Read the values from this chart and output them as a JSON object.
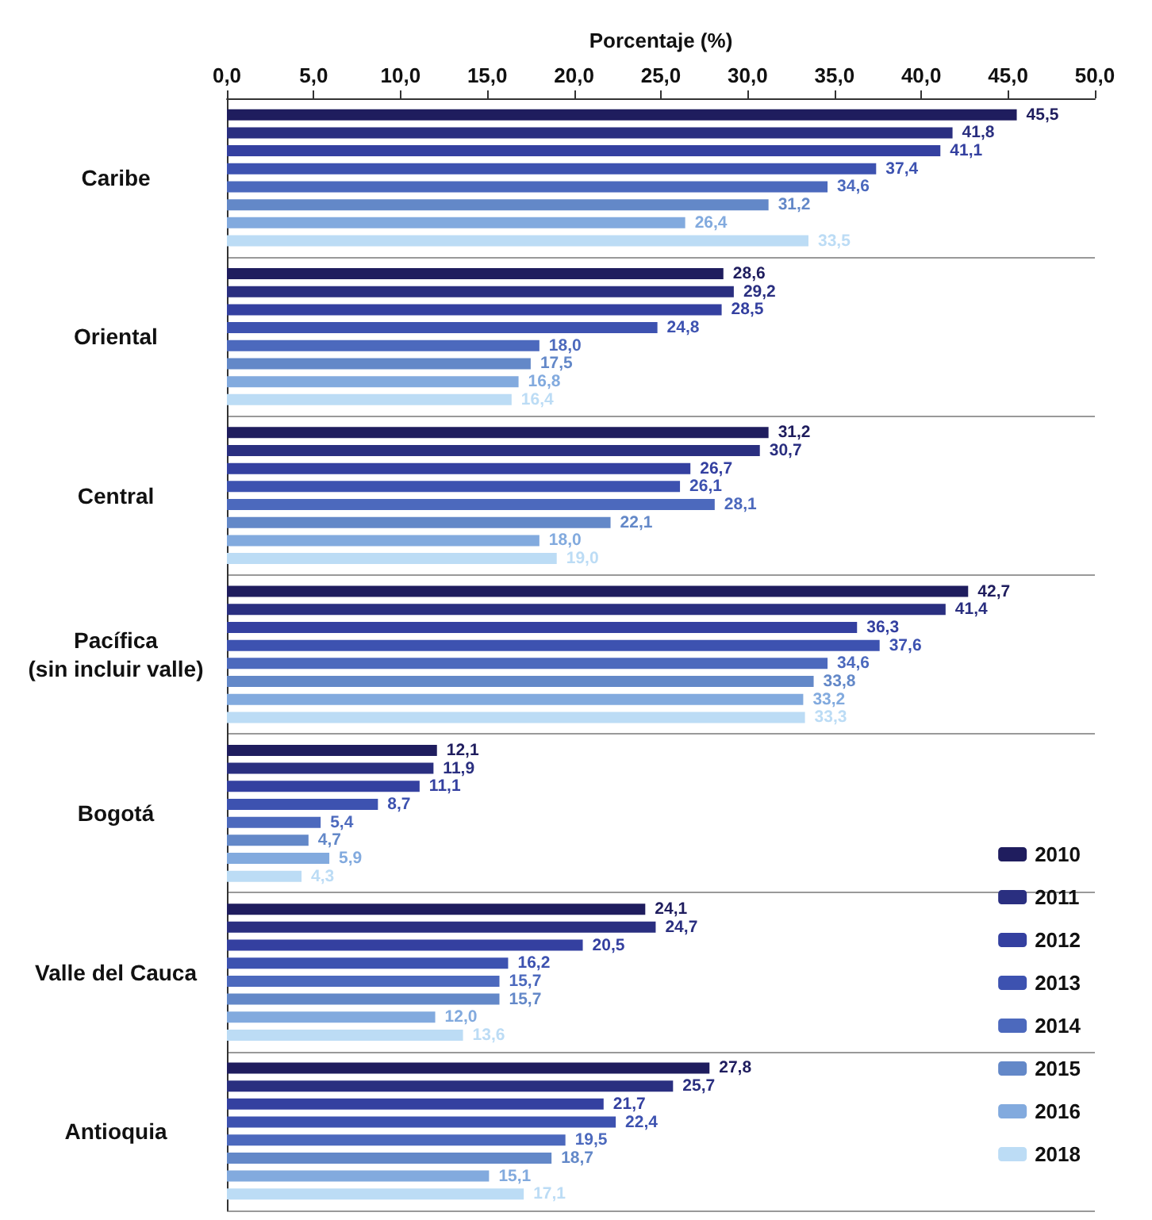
{
  "chart_data": {
    "type": "bar",
    "orientation": "horizontal",
    "xlabel": "Porcentaje (%)",
    "categories": [
      "Caribe",
      "Oriental",
      "Central",
      "Pacífica (sin incluir valle)",
      "Bogotá",
      "Valle del Cauca",
      "Antioquia"
    ],
    "series": [
      {
        "name": "2010",
        "color": "#1f1d5e",
        "values": [
          45.5,
          28.6,
          31.2,
          42.7,
          12.1,
          24.1,
          27.8
        ],
        "value_labels": [
          "45,5",
          "28,6",
          "31,2",
          "42,7",
          "12,1",
          "24,1",
          "27,8"
        ]
      },
      {
        "name": "2011",
        "color": "#2a2f80",
        "values": [
          41.8,
          29.2,
          30.7,
          41.4,
          11.9,
          24.7,
          25.7
        ],
        "value_labels": [
          "41,8",
          "29,2",
          "30,7",
          "41,4",
          "11,9",
          "24,7",
          "25,7"
        ]
      },
      {
        "name": "2012",
        "color": "#3440a0",
        "values": [
          41.1,
          28.5,
          26.7,
          36.3,
          11.1,
          20.5,
          21.7
        ],
        "value_labels": [
          "41,1",
          "28,5",
          "26,7",
          "36,3",
          "11,1",
          "20,5",
          "21,7"
        ]
      },
      {
        "name": "2013",
        "color": "#3d52b0",
        "values": [
          37.4,
          24.8,
          26.1,
          37.6,
          8.7,
          16.2,
          22.4
        ],
        "value_labels": [
          "37,4",
          "24,8",
          "26,1",
          "37,6",
          "8,7",
          "16,2",
          "22,4"
        ]
      },
      {
        "name": "2014",
        "color": "#4c69bd",
        "values": [
          34.6,
          18.0,
          28.1,
          34.6,
          5.4,
          15.7,
          19.5
        ],
        "value_labels": [
          "34,6",
          "18,0",
          "28,1",
          "34,6",
          "5,4",
          "15,7",
          "19,5"
        ]
      },
      {
        "name": "2015",
        "color": "#6388c8",
        "values": [
          31.2,
          17.5,
          22.1,
          33.8,
          4.7,
          15.7,
          18.7
        ],
        "value_labels": [
          "31,2",
          "17,5",
          "22,1",
          "33,8",
          "4,7",
          "15,7",
          "18,7"
        ]
      },
      {
        "name": "2016",
        "color": "#82aade",
        "values": [
          26.4,
          16.8,
          18.0,
          33.2,
          5.9,
          12.0,
          15.1
        ],
        "value_labels": [
          "26,4",
          "16,8",
          "18,0",
          "33,2",
          "5,9",
          "12,0",
          "15,1"
        ]
      },
      {
        "name": "2018",
        "color": "#bcdcf5",
        "values": [
          33.5,
          16.4,
          19.0,
          33.3,
          4.3,
          13.6,
          17.1
        ],
        "value_labels": [
          "33,5",
          "16,4",
          "19,0",
          "33,3",
          "4,3",
          "13,6",
          "17,1"
        ]
      }
    ],
    "xlim": [
      0,
      50
    ],
    "xticks": [
      {
        "value": 0,
        "label": "0,0"
      },
      {
        "value": 5,
        "label": "5,0"
      },
      {
        "value": 10,
        "label": "10,0"
      },
      {
        "value": 15,
        "label": "15,0"
      },
      {
        "value": 20,
        "label": "20,0"
      },
      {
        "value": 25,
        "label": "25,0"
      },
      {
        "value": 30,
        "label": "30,0"
      },
      {
        "value": 35,
        "label": "35,0"
      },
      {
        "value": 40,
        "label": "40,0"
      },
      {
        "value": 45,
        "label": "45,0"
      },
      {
        "value": 50,
        "label": "50,0"
      }
    ],
    "grid": "y",
    "legend": "bottom right"
  }
}
